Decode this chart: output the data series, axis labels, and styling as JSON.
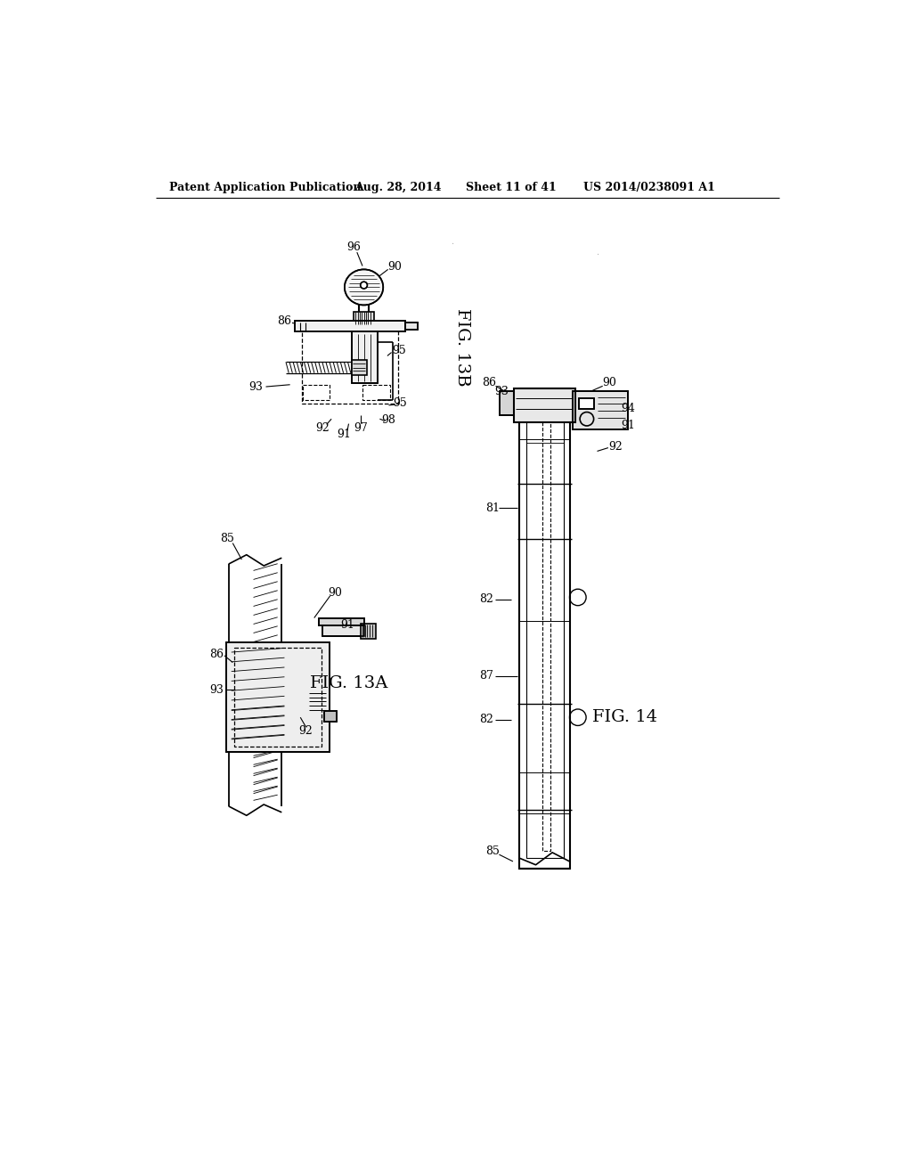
{
  "bg_color": "#ffffff",
  "header_text": "Patent Application Publication",
  "header_date": "Aug. 28, 2014",
  "header_sheet": "Sheet 11 of 41",
  "header_patent": "US 2014/0238091 A1",
  "fig13b_label": "FIG. 13B",
  "fig13a_label": "FIG. 13A",
  "fig14_label": "FIG. 14",
  "line_color": "#000000",
  "line_width": 1.2
}
